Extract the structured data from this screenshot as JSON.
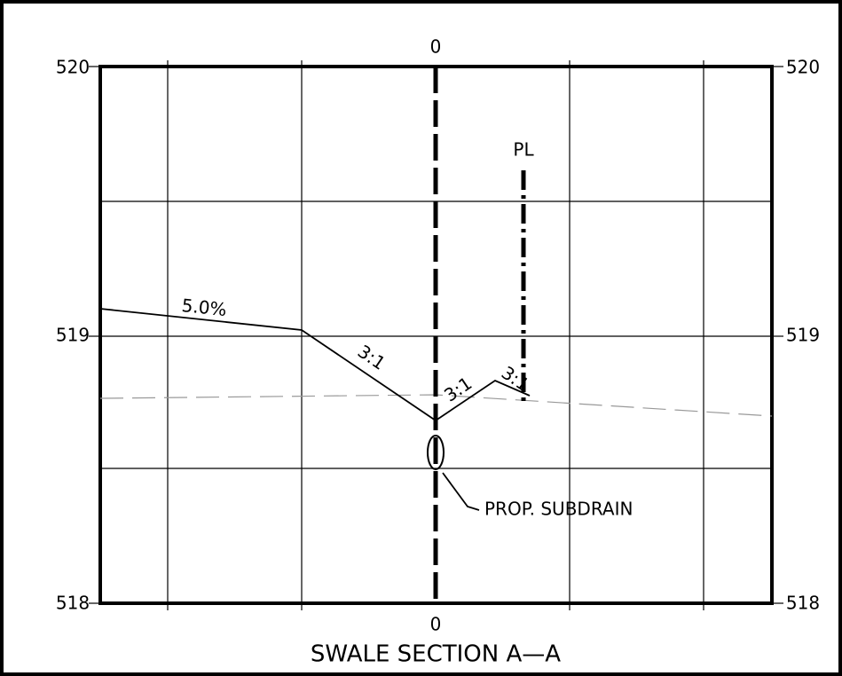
{
  "elevations": {
    "left": [
      520,
      519,
      518
    ],
    "right": [
      520,
      519,
      518
    ]
  },
  "offsets": {
    "top": "0",
    "bottom": "0"
  },
  "slopes": [
    "5.0%",
    "3:1",
    "3:1",
    "3:1"
  ],
  "property_line": "PL",
  "annotation": "PROP. SUBDRAIN",
  "title": "SWALE SECTION A—A"
}
